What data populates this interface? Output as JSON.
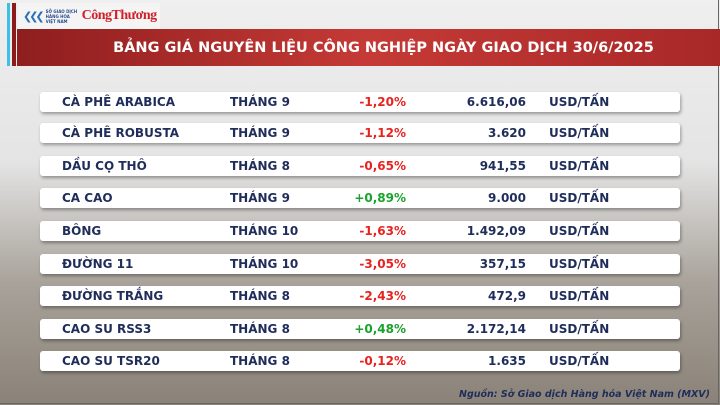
{
  "logo": {
    "exchange": "SỞ GIAO DỊCH HÀNG HÓA VIỆT NAM",
    "publisher": "CôngThương"
  },
  "title": "BẢNG GIÁ NGUYÊN LIỆU CÔNG NGHIỆP NGÀY GIAO DỊCH 30/6/2025",
  "rows": [
    {
      "name": "CÀ PHÊ ARABICA",
      "month": "THÁNG 9",
      "change": "-1,20%",
      "price": "6.616,06",
      "unit": "USD/TẤN"
    },
    {
      "name": "CÀ PHÊ ROBUSTA",
      "month": "THÁNG 9",
      "change": "-1,12%",
      "price": "3.620",
      "unit": "USD/TẤN"
    },
    {
      "name": "DẦU CỌ THÔ",
      "month": "THÁNG 8",
      "change": "-0,65%",
      "price": "941,55",
      "unit": "USD/TẤN"
    },
    {
      "name": "CA CAO",
      "month": "THÁNG 9",
      "change": "+0,89%",
      "price": "9.000",
      "unit": "USD/TẤN"
    },
    {
      "name": "BÔNG",
      "month": "THÁNG 10",
      "change": "-1,63%",
      "price": "1.492,09",
      "unit": "USD/TẤN"
    },
    {
      "name": "ĐƯỜNG 11",
      "month": "THÁNG 10",
      "change": "-3,05%",
      "price": "357,15",
      "unit": "USD/TẤN"
    },
    {
      "name": "ĐƯỜNG TRẮNG",
      "month": "THÁNG 8",
      "change": "-2,43%",
      "price": "472,9",
      "unit": "USD/TẤN"
    },
    {
      "name": "CAO SU RSS3",
      "month": "THÁNG 8",
      "change": "+0,48%",
      "price": "2.172,14",
      "unit": "USD/TẤN"
    },
    {
      "name": "CAO SU TSR20",
      "month": "THÁNG 8",
      "change": "-0,12%",
      "price": "1.635",
      "unit": "USD/TẤN"
    }
  ],
  "colors": {
    "negative": "#e8231f",
    "positive": "#1aa32a",
    "banner": "#b32e2c",
    "text": "#1f2d5a"
  },
  "source": "Nguồn: Sở Giao dịch Hàng hóa Việt Nam (MXV)"
}
